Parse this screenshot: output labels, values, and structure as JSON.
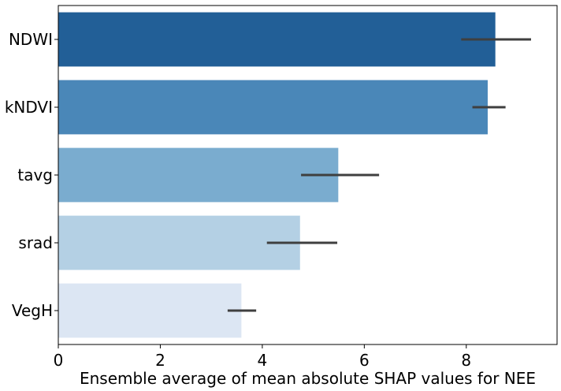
{
  "chart_data": {
    "type": "bar",
    "orientation": "horizontal",
    "categories": [
      "NDWI",
      "kNDVI",
      "tavg",
      "srad",
      "VegH"
    ],
    "values": [
      8.57,
      8.42,
      5.49,
      4.74,
      3.59
    ],
    "error_bars": [
      [
        7.9,
        9.27
      ],
      [
        8.12,
        8.77
      ],
      [
        4.76,
        6.29
      ],
      [
        4.09,
        5.47
      ],
      [
        3.32,
        3.88
      ]
    ],
    "colors": [
      "#225f97",
      "#4a87b8",
      "#7aaccf",
      "#b4d0e4",
      "#dce6f3"
    ],
    "error_color": "#3f3f3f",
    "xlabel": "Ensemble average of mean absolute SHAP values for NEE",
    "ylabel": "",
    "xlim": [
      0,
      9.78
    ],
    "xticks": [
      0,
      2,
      4,
      6,
      8
    ],
    "xtick_labels": [
      "0",
      "2",
      "4",
      "6",
      "8"
    ],
    "grid": false,
    "legend": "none"
  }
}
